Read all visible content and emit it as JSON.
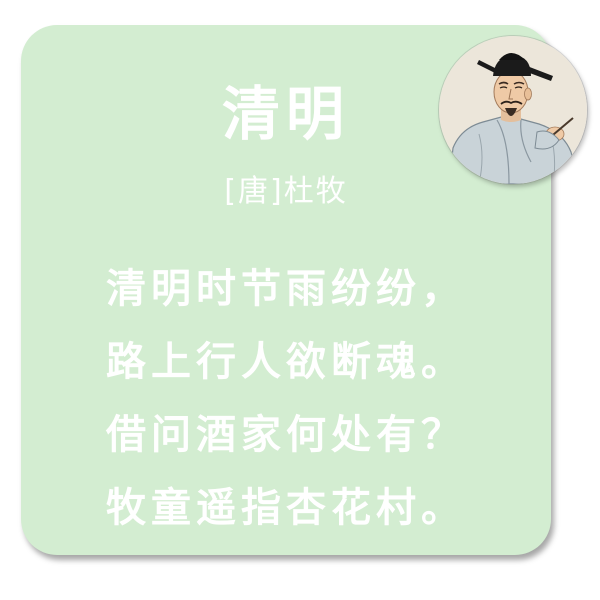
{
  "colors": {
    "card_background": "#d3edd1",
    "text": "#ffffff",
    "page_background": "#ffffff"
  },
  "poem": {
    "title": "清明",
    "author": "[唐]杜牧",
    "lines": [
      "清明时节雨纷纷，",
      "路上行人欲断魂。",
      "借问酒家何处有？",
      "牧童遥指杏花村。"
    ]
  },
  "portrait": {
    "icon": "poet-portrait-icon"
  }
}
